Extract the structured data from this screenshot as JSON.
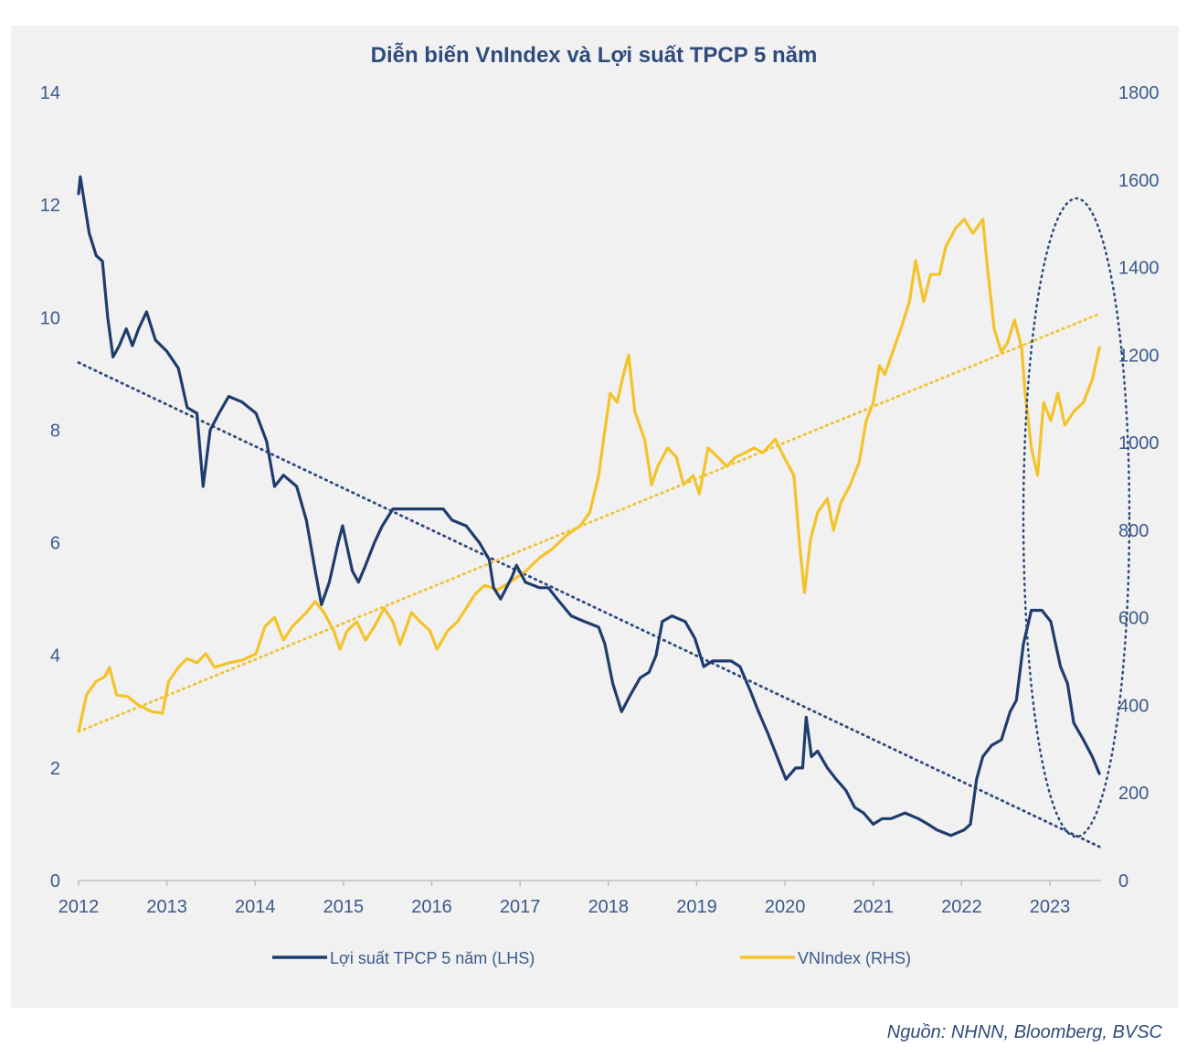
{
  "chart_data": {
    "type": "line",
    "title": "Diễn biến VnIndex và Lợi suất TPCP 5 năm",
    "x_ticks": [
      "2012",
      "2013",
      "2014",
      "2015",
      "2016",
      "2017",
      "2018",
      "2019",
      "2020",
      "2021",
      "2022",
      "2023"
    ],
    "y_left": {
      "ticks": [
        0,
        2,
        4,
        6,
        8,
        10,
        12,
        14
      ],
      "range": [
        0,
        14
      ]
    },
    "y_right": {
      "ticks": [
        0,
        200,
        400,
        600,
        800,
        1000,
        1200,
        1400,
        1600,
        1800
      ],
      "range": [
        0,
        1800
      ]
    },
    "legend_position": "bottom",
    "series": [
      {
        "name": "Lợi suất TPCP 5 năm (LHS)",
        "axis": "left",
        "color": "#1f3c6e",
        "points": [
          [
            2012.0,
            12.2
          ],
          [
            2012.02,
            12.5
          ],
          [
            2012.06,
            12.1
          ],
          [
            2012.12,
            11.5
          ],
          [
            2012.2,
            11.1
          ],
          [
            2012.27,
            11.0
          ],
          [
            2012.33,
            10.0
          ],
          [
            2012.39,
            9.3
          ],
          [
            2012.46,
            9.5
          ],
          [
            2012.54,
            9.8
          ],
          [
            2012.61,
            9.5
          ],
          [
            2012.68,
            9.8
          ],
          [
            2012.77,
            10.1
          ],
          [
            2012.87,
            9.6
          ],
          [
            2013.0,
            9.4
          ],
          [
            2013.13,
            9.1
          ],
          [
            2013.23,
            8.4
          ],
          [
            2013.34,
            8.3
          ],
          [
            2013.41,
            7.0
          ],
          [
            2013.49,
            8.0
          ],
          [
            2013.59,
            8.3
          ],
          [
            2013.7,
            8.6
          ],
          [
            2013.85,
            8.5
          ],
          [
            2014.01,
            8.3
          ],
          [
            2014.13,
            7.8
          ],
          [
            2014.22,
            7.0
          ],
          [
            2014.32,
            7.2
          ],
          [
            2014.47,
            7.0
          ],
          [
            2014.58,
            6.4
          ],
          [
            2014.68,
            5.5
          ],
          [
            2014.75,
            4.9
          ],
          [
            2014.84,
            5.3
          ],
          [
            2014.94,
            6.0
          ],
          [
            2014.99,
            6.3
          ],
          [
            2015.1,
            5.5
          ],
          [
            2015.17,
            5.3
          ],
          [
            2015.25,
            5.6
          ],
          [
            2015.35,
            6.0
          ],
          [
            2015.44,
            6.3
          ],
          [
            2015.56,
            6.6
          ],
          [
            2015.87,
            6.6
          ],
          [
            2016.13,
            6.6
          ],
          [
            2016.23,
            6.4
          ],
          [
            2016.39,
            6.3
          ],
          [
            2016.54,
            6.0
          ],
          [
            2016.65,
            5.7
          ],
          [
            2016.7,
            5.2
          ],
          [
            2016.78,
            5.0
          ],
          [
            2016.91,
            5.4
          ],
          [
            2016.96,
            5.6
          ],
          [
            2017.06,
            5.3
          ],
          [
            2017.22,
            5.2
          ],
          [
            2017.32,
            5.2
          ],
          [
            2017.42,
            5.0
          ],
          [
            2017.58,
            4.7
          ],
          [
            2017.73,
            4.6
          ],
          [
            2017.89,
            4.5
          ],
          [
            2017.96,
            4.2
          ],
          [
            2018.05,
            3.5
          ],
          [
            2018.15,
            3.0
          ],
          [
            2018.25,
            3.3
          ],
          [
            2018.36,
            3.6
          ],
          [
            2018.46,
            3.7
          ],
          [
            2018.54,
            4.0
          ],
          [
            2018.61,
            4.6
          ],
          [
            2018.72,
            4.7
          ],
          [
            2018.87,
            4.6
          ],
          [
            2018.98,
            4.3
          ],
          [
            2019.08,
            3.8
          ],
          [
            2019.18,
            3.9
          ],
          [
            2019.39,
            3.9
          ],
          [
            2019.49,
            3.8
          ],
          [
            2019.6,
            3.4
          ],
          [
            2019.7,
            3.0
          ],
          [
            2019.81,
            2.6
          ],
          [
            2019.91,
            2.2
          ],
          [
            2020.01,
            1.8
          ],
          [
            2020.12,
            2.0
          ],
          [
            2020.2,
            2.0
          ],
          [
            2020.24,
            2.9
          ],
          [
            2020.3,
            2.2
          ],
          [
            2020.37,
            2.3
          ],
          [
            2020.48,
            2.0
          ],
          [
            2020.58,
            1.8
          ],
          [
            2020.69,
            1.6
          ],
          [
            2020.79,
            1.3
          ],
          [
            2020.89,
            1.2
          ],
          [
            2021.0,
            1.0
          ],
          [
            2021.1,
            1.1
          ],
          [
            2021.2,
            1.1
          ],
          [
            2021.36,
            1.2
          ],
          [
            2021.51,
            1.1
          ],
          [
            2021.62,
            1.0
          ],
          [
            2021.72,
            0.9
          ],
          [
            2021.88,
            0.8
          ],
          [
            2022.03,
            0.9
          ],
          [
            2022.1,
            1.0
          ],
          [
            2022.17,
            1.8
          ],
          [
            2022.24,
            2.2
          ],
          [
            2022.34,
            2.4
          ],
          [
            2022.45,
            2.5
          ],
          [
            2022.55,
            3.0
          ],
          [
            2022.62,
            3.2
          ],
          [
            2022.7,
            4.2
          ],
          [
            2022.79,
            4.8
          ],
          [
            2022.91,
            4.8
          ],
          [
            2023.01,
            4.6
          ],
          [
            2023.12,
            3.8
          ],
          [
            2023.2,
            3.5
          ],
          [
            2023.27,
            2.8
          ],
          [
            2023.38,
            2.5
          ],
          [
            2023.48,
            2.2
          ],
          [
            2023.56,
            1.9
          ]
        ]
      },
      {
        "name": "VNIndex (RHS)",
        "axis": "right",
        "color": "#f4c32a",
        "points": [
          [
            2012.0,
            340
          ],
          [
            2012.09,
            424
          ],
          [
            2012.2,
            455
          ],
          [
            2012.3,
            466
          ],
          [
            2012.35,
            487
          ],
          [
            2012.43,
            424
          ],
          [
            2012.56,
            420
          ],
          [
            2012.66,
            403
          ],
          [
            2012.82,
            386
          ],
          [
            2012.95,
            382
          ],
          [
            2013.02,
            455
          ],
          [
            2013.13,
            487
          ],
          [
            2013.23,
            507
          ],
          [
            2013.34,
            497
          ],
          [
            2013.44,
            518
          ],
          [
            2013.54,
            487
          ],
          [
            2013.7,
            497
          ],
          [
            2013.85,
            503
          ],
          [
            2014.01,
            518
          ],
          [
            2014.11,
            580
          ],
          [
            2014.22,
            601
          ],
          [
            2014.32,
            549
          ],
          [
            2014.42,
            580
          ],
          [
            2014.58,
            612
          ],
          [
            2014.68,
            637
          ],
          [
            2014.78,
            612
          ],
          [
            2014.89,
            570
          ],
          [
            2014.96,
            528
          ],
          [
            2015.04,
            570
          ],
          [
            2015.15,
            591
          ],
          [
            2015.25,
            549
          ],
          [
            2015.35,
            580
          ],
          [
            2015.46,
            622
          ],
          [
            2015.56,
            591
          ],
          [
            2015.64,
            539
          ],
          [
            2015.77,
            612
          ],
          [
            2015.87,
            591
          ],
          [
            2015.98,
            570
          ],
          [
            2016.06,
            528
          ],
          [
            2016.18,
            570
          ],
          [
            2016.29,
            591
          ],
          [
            2016.39,
            622
          ],
          [
            2016.49,
            654
          ],
          [
            2016.6,
            674
          ],
          [
            2016.75,
            664
          ],
          [
            2016.91,
            685
          ],
          [
            2017.06,
            706
          ],
          [
            2017.22,
            737
          ],
          [
            2017.37,
            758
          ],
          [
            2017.53,
            789
          ],
          [
            2017.68,
            810
          ],
          [
            2017.79,
            841
          ],
          [
            2017.89,
            925
          ],
          [
            2017.96,
            1029
          ],
          [
            2018.02,
            1113
          ],
          [
            2018.1,
            1092
          ],
          [
            2018.17,
            1155
          ],
          [
            2018.23,
            1200
          ],
          [
            2018.3,
            1071
          ],
          [
            2018.41,
            1008
          ],
          [
            2018.49,
            904
          ],
          [
            2018.56,
            946
          ],
          [
            2018.67,
            988
          ],
          [
            2018.77,
            967
          ],
          [
            2018.85,
            904
          ],
          [
            2018.96,
            925
          ],
          [
            2019.03,
            883
          ],
          [
            2019.13,
            988
          ],
          [
            2019.24,
            967
          ],
          [
            2019.34,
            946
          ],
          [
            2019.44,
            967
          ],
          [
            2019.55,
            977
          ],
          [
            2019.65,
            988
          ],
          [
            2019.75,
            977
          ],
          [
            2019.89,
            1008
          ],
          [
            2019.99,
            967
          ],
          [
            2020.1,
            925
          ],
          [
            2020.17,
            758
          ],
          [
            2020.22,
            658
          ],
          [
            2020.29,
            779
          ],
          [
            2020.37,
            841
          ],
          [
            2020.48,
            872
          ],
          [
            2020.55,
            800
          ],
          [
            2020.63,
            862
          ],
          [
            2020.74,
            904
          ],
          [
            2020.84,
            956
          ],
          [
            2020.92,
            1050
          ],
          [
            2021.0,
            1092
          ],
          [
            2021.07,
            1176
          ],
          [
            2021.13,
            1155
          ],
          [
            2021.2,
            1196
          ],
          [
            2021.31,
            1259
          ],
          [
            2021.41,
            1322
          ],
          [
            2021.48,
            1416
          ],
          [
            2021.57,
            1322
          ],
          [
            2021.65,
            1384
          ],
          [
            2021.75,
            1384
          ],
          [
            2021.82,
            1447
          ],
          [
            2021.93,
            1489
          ],
          [
            2022.03,
            1510
          ],
          [
            2022.13,
            1478
          ],
          [
            2022.24,
            1510
          ],
          [
            2022.29,
            1405
          ],
          [
            2022.37,
            1259
          ],
          [
            2022.45,
            1207
          ],
          [
            2022.52,
            1228
          ],
          [
            2022.6,
            1280
          ],
          [
            2022.68,
            1217
          ],
          [
            2022.72,
            1113
          ],
          [
            2022.79,
            988
          ],
          [
            2022.86,
            925
          ],
          [
            2022.93,
            1092
          ],
          [
            2023.01,
            1050
          ],
          [
            2023.09,
            1113
          ],
          [
            2023.17,
            1040
          ],
          [
            2023.27,
            1071
          ],
          [
            2023.38,
            1092
          ],
          [
            2023.48,
            1144
          ],
          [
            2023.56,
            1217
          ]
        ]
      }
    ],
    "trendlines": [
      {
        "series": "Lợi suất TPCP 5 năm (LHS)",
        "axis": "left",
        "color": "#2d4a7a",
        "start": [
          2012.0,
          9.2
        ],
        "end": [
          2023.56,
          0.6
        ]
      },
      {
        "series": "VNIndex (RHS)",
        "axis": "right",
        "color": "#f0c232",
        "start": [
          2012.0,
          340
        ],
        "end": [
          2023.56,
          1294
        ]
      }
    ],
    "source": "Nguồn: NHNN, Bloomberg, BVSC"
  }
}
